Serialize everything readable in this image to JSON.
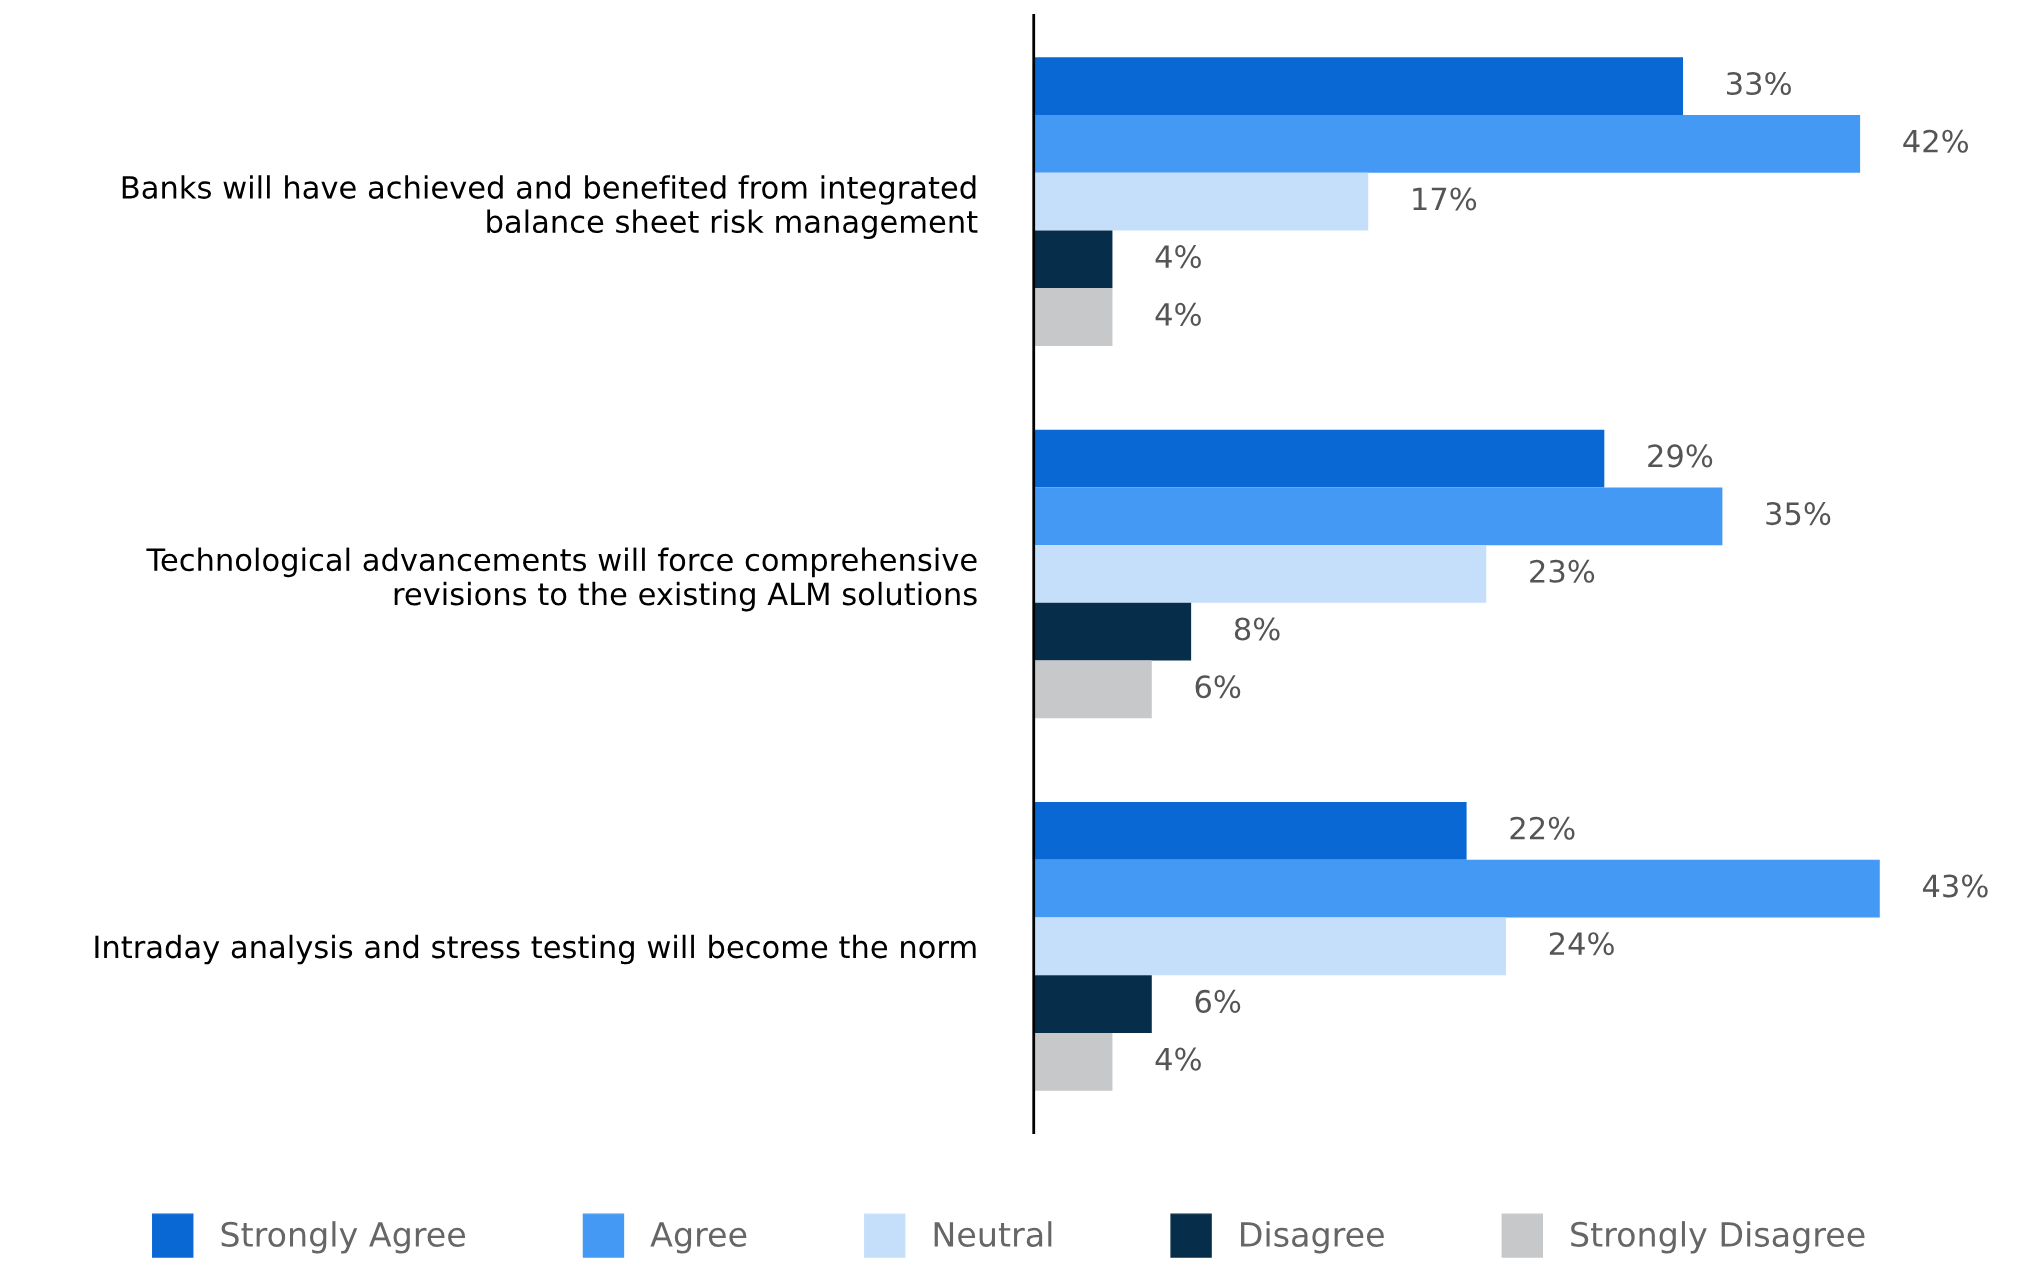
{
  "chart_data": {
    "type": "bar",
    "orientation": "horizontal",
    "categories": [
      "Banks will have achieved and benefited from integrated\nbalance sheet risk management",
      "Technological advancements will force comprehensive\nrevisions to the existing ALM solutions",
      "Intraday analysis and stress testing will become the norm"
    ],
    "series": [
      {
        "name": "Strongly Agree",
        "color": "#0a68d4",
        "values": [
          33,
          29,
          22
        ],
        "value_labels": [
          "33%",
          "29%",
          "22%"
        ]
      },
      {
        "name": "Agree",
        "color": "#4499f5",
        "values": [
          42,
          35,
          43
        ],
        "value_labels": [
          "42%",
          "35%",
          "43%"
        ]
      },
      {
        "name": "Neutral",
        "color": "#c5dffb",
        "values": [
          17,
          23,
          24
        ],
        "value_labels": [
          "17%",
          "23%",
          "24%"
        ]
      },
      {
        "name": "Disagree",
        "color": "#062e4a",
        "values": [
          4,
          8,
          6
        ],
        "value_labels": [
          "4%",
          "8%",
          "6%"
        ]
      },
      {
        "name": "Strongly Disagree",
        "color": "#c7c8ca",
        "values": [
          4,
          6,
          4
        ],
        "value_labels": [
          "4%",
          "6%",
          "4%"
        ]
      }
    ],
    "tick_labels": "y",
    "legend": "bottom"
  }
}
